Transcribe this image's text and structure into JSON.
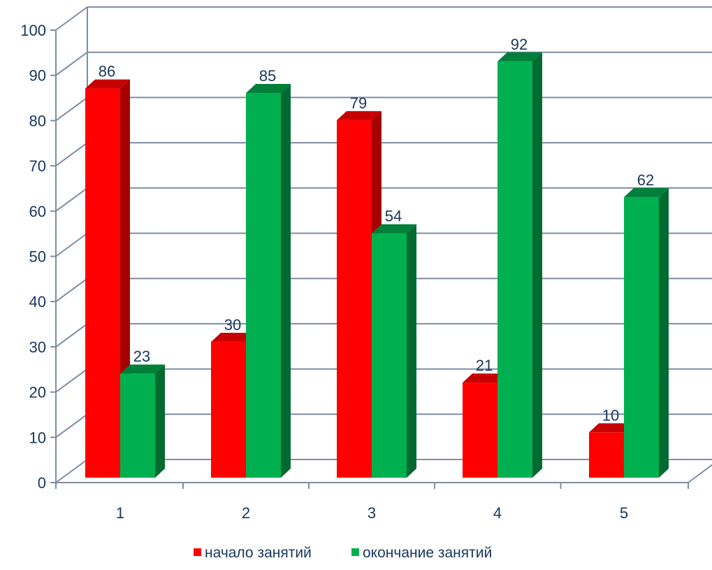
{
  "chart_data": {
    "type": "bar",
    "title": "",
    "xlabel": "",
    "ylabel": "",
    "categories": [
      "1",
      "2",
      "3",
      "4",
      "5"
    ],
    "series": [
      {
        "name": "начало занятий",
        "values": [
          86,
          30,
          79,
          21,
          10
        ],
        "color": "#ff0000"
      },
      {
        "name": "окончание занятий",
        "values": [
          23,
          85,
          54,
          92,
          62
        ],
        "color": "#00b050"
      }
    ],
    "ylim": [
      0,
      100
    ],
    "yticks": [
      0,
      10,
      20,
      30,
      40,
      50,
      60,
      70,
      80,
      90,
      100
    ],
    "grid": true,
    "style_3d": true,
    "legend_position": "bottom",
    "label_color": "#17375e",
    "grid_color": "#7f8ca3"
  }
}
